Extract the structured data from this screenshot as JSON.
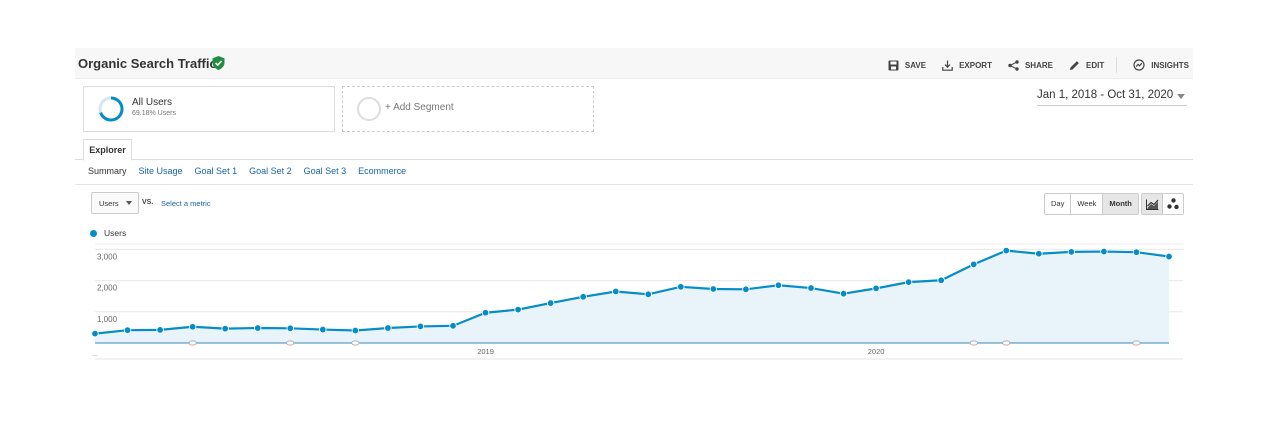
{
  "title": "Organic Search Traffic",
  "toolbar": {
    "save": "SAVE",
    "export": "EXPORT",
    "share": "SHARE",
    "edit": "EDIT",
    "insights": "INSIGHTS"
  },
  "segments": {
    "all_users": {
      "name": "All Users",
      "percent": "69.18% Users",
      "share": 0.6918
    },
    "add_segment": "+ Add Segment"
  },
  "date_range": "Jan 1, 2018 - Oct 31, 2020",
  "explorer_tab": "Explorer",
  "subtabs": [
    "Summary",
    "Site Usage",
    "Goal Set 1",
    "Goal Set 2",
    "Goal Set 3",
    "Ecommerce"
  ],
  "metric_select": "Users",
  "vs_label": "VS.",
  "select_metric": "Select a metric",
  "periods": [
    "Day",
    "Week",
    "Month"
  ],
  "active_period": "Month",
  "icons": [
    "verified-check-icon",
    "save-icon",
    "export-icon",
    "share-icon",
    "edit-icon",
    "insights-icon",
    "line-chart-icon",
    "motion-chart-icon"
  ],
  "colors": {
    "series": "#058dc7",
    "fill": "#e9f3fa",
    "verified": "#1e8e3e"
  },
  "chart_data": {
    "type": "area",
    "series": [
      {
        "name": "Users",
        "x": [
          "2018-01",
          "2018-02",
          "2018-03",
          "2018-04",
          "2018-05",
          "2018-06",
          "2018-07",
          "2018-08",
          "2018-09",
          "2018-10",
          "2018-11",
          "2018-12",
          "2019-01",
          "2019-02",
          "2019-03",
          "2019-04",
          "2019-05",
          "2019-06",
          "2019-07",
          "2019-08",
          "2019-09",
          "2019-10",
          "2019-11",
          "2019-12",
          "2020-01",
          "2020-02",
          "2020-03",
          "2020-04",
          "2020-05",
          "2020-06",
          "2020-07",
          "2020-08",
          "2020-09",
          "2020-10"
        ],
        "values": [
          300,
          410,
          420,
          520,
          460,
          480,
          470,
          430,
          400,
          480,
          530,
          550,
          970,
          1070,
          1280,
          1480,
          1650,
          1560,
          1800,
          1730,
          1720,
          1850,
          1760,
          1580,
          1750,
          1950,
          2010,
          2520,
          2960,
          2860,
          2920,
          2930,
          2910,
          2770
        ]
      }
    ],
    "yticks": [
      "1,000",
      "2,000",
      "3,000"
    ],
    "ytick_values": [
      1000,
      2000,
      3000
    ],
    "ylim": [
      0,
      3300
    ],
    "xtick_labels": [
      {
        "label": "2019",
        "x": "2019-01"
      },
      {
        "label": "2020",
        "x": "2020-01"
      }
    ],
    "first_label": "...",
    "grid": true,
    "legend": "top-left"
  }
}
